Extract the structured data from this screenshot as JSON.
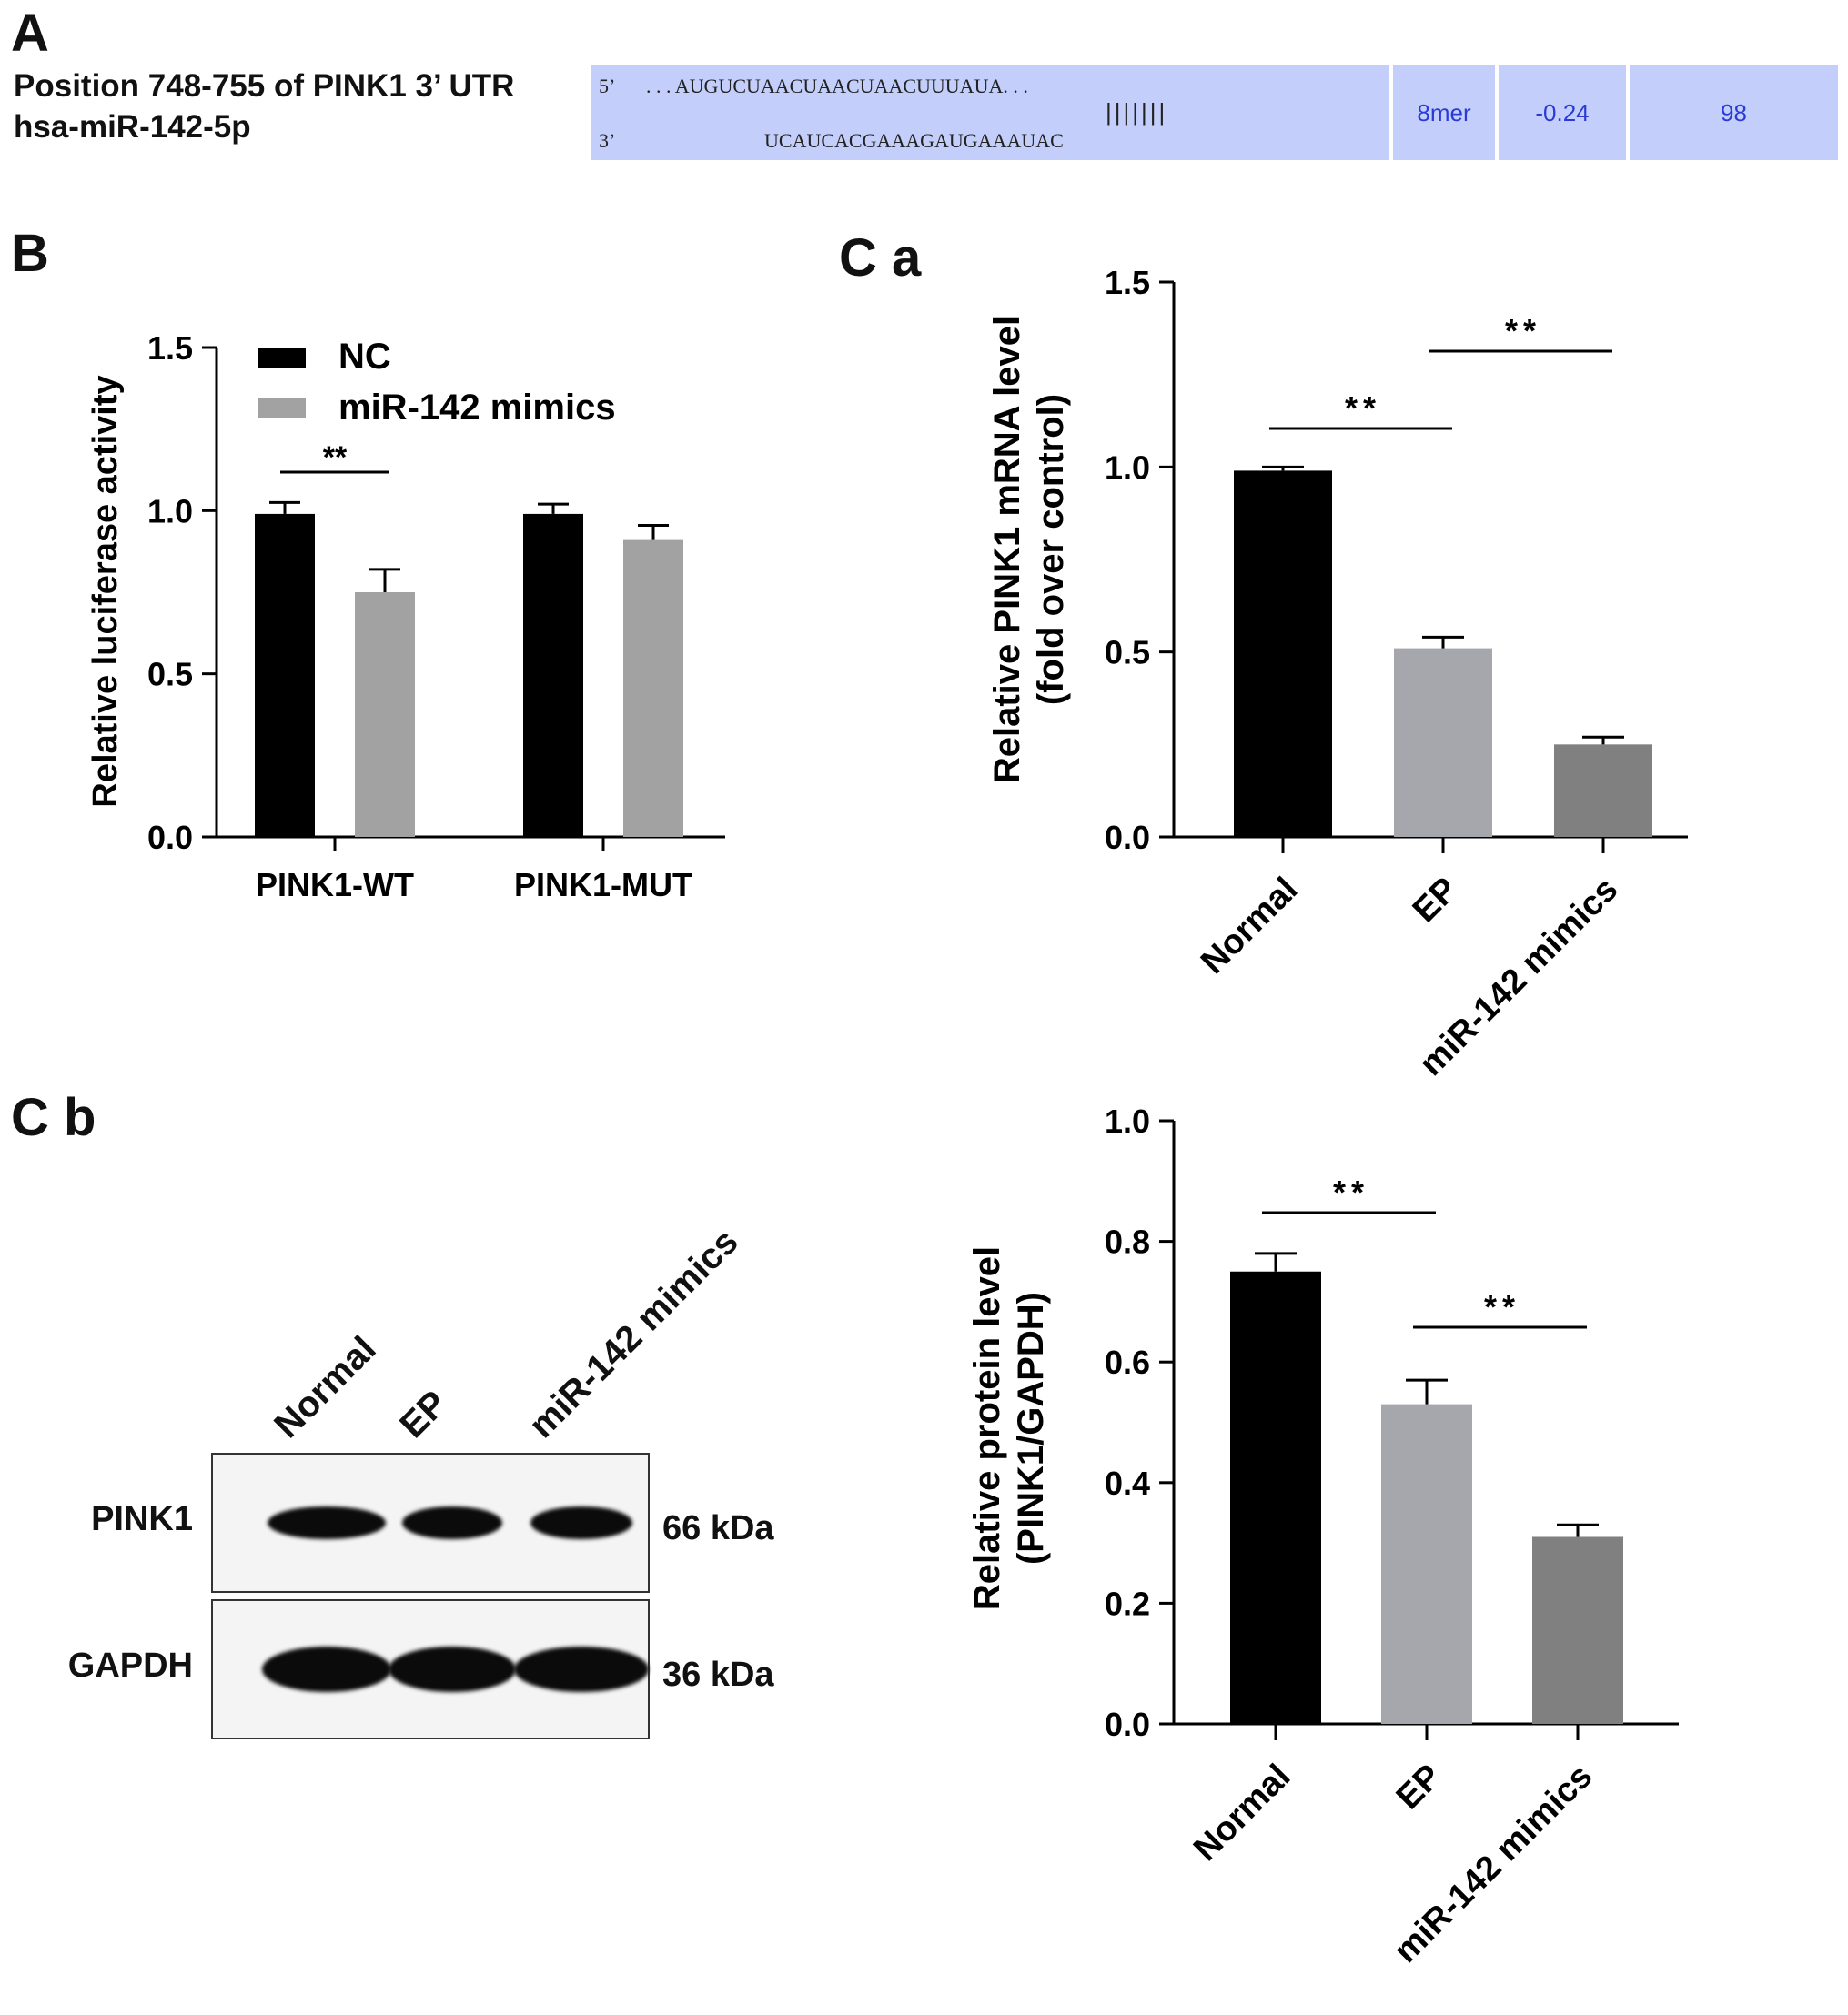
{
  "panel_labels": {
    "a": "A",
    "b": "B",
    "ca": "C a",
    "cb": "C b"
  },
  "panel_a": {
    "line1": "Position 748-755 of PINK1 3’ UTR",
    "line2": "hsa-miR-142-5p",
    "utr_prime": "5’",
    "utr_seq": ". . . AUGUCUAACUAACUAACUUUAUA. . .",
    "mir_prime": "3’",
    "mir_seq": "UCAUCACGAAAGAUGAAAUAC",
    "pairing": "|||||||",
    "site_type": "8mer",
    "context_score": "-0.24",
    "percentile": "98"
  },
  "panel_cb": {
    "lanes": [
      "Normal",
      "EP",
      "miR-142 mimics"
    ],
    "rows": [
      {
        "label": "PINK1",
        "size": "66 kDa"
      },
      {
        "label": "GAPDH",
        "size": "36 kDa"
      }
    ]
  },
  "chart_data": [
    {
      "id": "B",
      "type": "bar",
      "categories": [
        "PINK1-WT",
        "PINK1-MUT"
      ],
      "series": [
        {
          "name": "NC",
          "values": [
            0.99,
            0.99
          ],
          "errors": [
            0.035,
            0.03
          ],
          "color": "#000000"
        },
        {
          "name": "miR-142 mimics",
          "values": [
            0.75,
            0.91
          ],
          "errors": [
            0.07,
            0.045
          ],
          "color": "#a2a2a2"
        }
      ],
      "ylabel": "Relative luciferase activity",
      "ylim": [
        0,
        1.5
      ],
      "yticks": [
        "0.0",
        "0.5",
        "1.0",
        "1.5"
      ],
      "legend": "top-left",
      "significance": [
        {
          "category": "PINK1-WT",
          "label": "**"
        }
      ],
      "grid": false
    },
    {
      "id": "Ca",
      "type": "bar",
      "categories": [
        "Normal",
        "EP",
        "miR-142 mimics"
      ],
      "values": [
        0.99,
        0.51,
        0.25
      ],
      "errors": [
        0.01,
        0.03,
        0.02
      ],
      "colors": [
        "#000000",
        "#a6a6ad",
        "#808080"
      ],
      "ylabel": "Relative PINK1 mRNA level",
      "ylabel2": "(fold over control)",
      "ylim": [
        0,
        1.5
      ],
      "yticks": [
        "0.0",
        "0.5",
        "1.0",
        "1.5"
      ],
      "significance": [
        {
          "from": "Normal",
          "to": "EP",
          "label": "**"
        },
        {
          "from": "EP",
          "to": "miR-142 mimics",
          "label": "**"
        }
      ],
      "grid": false
    },
    {
      "id": "Cb",
      "type": "bar",
      "categories": [
        "Normal",
        "EP",
        "miR-142 mimics"
      ],
      "values": [
        0.75,
        0.53,
        0.31
      ],
      "errors": [
        0.03,
        0.04,
        0.02
      ],
      "colors": [
        "#000000",
        "#a6a6ad",
        "#808080"
      ],
      "ylabel": "Relative protein level",
      "ylabel2": "(PINK1/GAPDH)",
      "ylim": [
        0,
        1.0
      ],
      "yticks": [
        "0.0",
        "0.2",
        "0.4",
        "0.6",
        "0.8",
        "1.0"
      ],
      "significance": [
        {
          "from": "Normal",
          "to": "EP",
          "label": "**"
        },
        {
          "from": "EP",
          "to": "miR-142 mimics",
          "label": "**"
        }
      ],
      "grid": false
    }
  ]
}
